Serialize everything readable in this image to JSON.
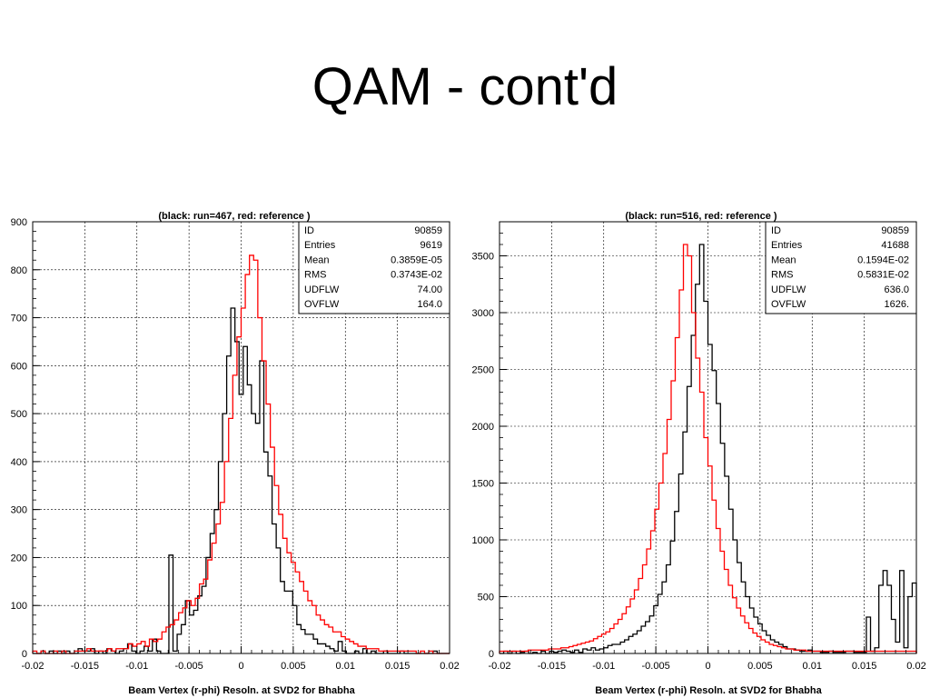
{
  "slide": {
    "title": "QAM - cont'd"
  },
  "chart_data": [
    {
      "type": "histogram",
      "title": "(black: run=467, red: reference )",
      "xlabel": "Beam Vertex (r-phi) Resoln. at SVD2 for Bhabha",
      "ylabel": "",
      "xlim": [
        -0.02,
        0.02
      ],
      "ylim": [
        0,
        900
      ],
      "x_ticks": [
        "-0.02",
        "-0.015",
        "-0.01",
        "-0.005",
        "0",
        "0.005",
        "0.01",
        "0.015",
        "0.02"
      ],
      "y_ticks": [
        0,
        100,
        200,
        300,
        400,
        500,
        600,
        700,
        800,
        900
      ],
      "grid": true,
      "bin_width": 0.0004,
      "series": [
        {
          "name": "black: run=467",
          "color": "#000000",
          "values": [
            0,
            0,
            5,
            0,
            5,
            0,
            5,
            0,
            5,
            0,
            0,
            10,
            5,
            5,
            10,
            0,
            5,
            0,
            10,
            5,
            0,
            5,
            10,
            20,
            5,
            0,
            5,
            15,
            5,
            30,
            5,
            0,
            0,
            205,
            5,
            40,
            60,
            110,
            80,
            90,
            120,
            140,
            200,
            250,
            300,
            400,
            500,
            620,
            720,
            650,
            540,
            640,
            560,
            500,
            480,
            610,
            420,
            370,
            270,
            220,
            150,
            130,
            130,
            100,
            60,
            50,
            40,
            40,
            30,
            20,
            20,
            15,
            10,
            5,
            25,
            5,
            0,
            0,
            5,
            0,
            10,
            0,
            5,
            0,
            0,
            5,
            0,
            0,
            0,
            5,
            0,
            0,
            0,
            0,
            0,
            0,
            0,
            5,
            0,
            0,
            0
          ]
        },
        {
          "name": "red: reference",
          "color": "#ff0000",
          "values": [
            5,
            0,
            5,
            0,
            0,
            5,
            0,
            5,
            0,
            0,
            5,
            5,
            5,
            10,
            5,
            5,
            5,
            5,
            10,
            5,
            10,
            10,
            10,
            20,
            15,
            20,
            25,
            15,
            30,
            25,
            30,
            45,
            55,
            60,
            70,
            85,
            95,
            110,
            100,
            115,
            145,
            155,
            195,
            230,
            270,
            315,
            400,
            490,
            580,
            660,
            720,
            790,
            830,
            820,
            700,
            610,
            520,
            430,
            350,
            290,
            240,
            210,
            190,
            170,
            150,
            130,
            110,
            100,
            80,
            70,
            60,
            55,
            45,
            45,
            35,
            30,
            25,
            20,
            15,
            15,
            10,
            10,
            10,
            5,
            5,
            5,
            5,
            5,
            5,
            5,
            5,
            5,
            0,
            5,
            0,
            5,
            0,
            0,
            0,
            0
          ]
        }
      ],
      "stats": [
        {
          "label": "ID",
          "value": "90859"
        },
        {
          "label": "Entries",
          "value": "9619"
        },
        {
          "label": "Mean",
          "value": "0.3859E-05"
        },
        {
          "label": "RMS",
          "value": "0.3743E-02"
        },
        {
          "label": "UDFLW",
          "value": "74.00"
        },
        {
          "label": "OVFLW",
          "value": "164.0"
        }
      ]
    },
    {
      "type": "histogram",
      "title": "(black: run=516, red: reference )",
      "xlabel": "Beam Vertex (r-phi) Resoln. at SVD2 for Bhabha",
      "ylabel": "",
      "xlim": [
        -0.02,
        0.02
      ],
      "ylim": [
        0,
        3800
      ],
      "x_ticks": [
        "-0.02",
        "-0.015",
        "-0.01",
        "-0.005",
        "0",
        "0.005",
        "0.01",
        "0.015",
        "0.02"
      ],
      "y_ticks": [
        0,
        500,
        1000,
        1500,
        2000,
        2500,
        3000,
        3500
      ],
      "grid": true,
      "bin_width": 0.0004,
      "series": [
        {
          "name": "black: run=516",
          "color": "#000000",
          "values": [
            0,
            20,
            0,
            20,
            0,
            10,
            20,
            0,
            10,
            0,
            20,
            0,
            20,
            10,
            20,
            30,
            20,
            10,
            30,
            10,
            40,
            30,
            50,
            30,
            40,
            50,
            70,
            80,
            80,
            100,
            120,
            150,
            170,
            200,
            240,
            280,
            330,
            420,
            520,
            630,
            780,
            990,
            1250,
            1580,
            1950,
            2350,
            2800,
            3250,
            3600,
            3100,
            2720,
            2490,
            2200,
            1850,
            1560,
            1270,
            1000,
            800,
            630,
            500,
            400,
            320,
            260,
            200,
            160,
            120,
            100,
            80,
            60,
            40,
            40,
            30,
            20,
            20,
            30,
            20,
            20,
            10,
            10,
            20,
            10,
            10,
            10,
            20,
            20,
            10,
            10,
            10,
            320,
            20,
            50,
            600,
            730,
            600,
            300,
            100,
            730,
            50,
            500,
            620
          ]
        },
        {
          "name": "red: reference",
          "color": "#ff0000",
          "values": [
            20,
            20,
            20,
            20,
            20,
            20,
            20,
            30,
            30,
            30,
            30,
            30,
            40,
            40,
            40,
            50,
            50,
            60,
            70,
            80,
            90,
            100,
            110,
            130,
            150,
            170,
            190,
            220,
            260,
            300,
            350,
            410,
            480,
            560,
            660,
            780,
            920,
            1080,
            1270,
            1500,
            1760,
            2060,
            2400,
            2780,
            3200,
            3600,
            3500,
            3000,
            2600,
            2300,
            1900,
            1650,
            1350,
            1100,
            900,
            740,
            600,
            490,
            400,
            330,
            270,
            220,
            180,
            150,
            120,
            100,
            80,
            70,
            60,
            50,
            40,
            40,
            30,
            30,
            30,
            20,
            20,
            20,
            20,
            20,
            20,
            20,
            20,
            20,
            20,
            20,
            20,
            20,
            20,
            20,
            20,
            20,
            20,
            20,
            20,
            20,
            20,
            20,
            20,
            20,
            20,
            20
          ]
        }
      ],
      "stats": [
        {
          "label": "ID",
          "value": "90859"
        },
        {
          "label": "Entries",
          "value": "41688"
        },
        {
          "label": "Mean",
          "value": "0.1594E-02"
        },
        {
          "label": "RMS",
          "value": "0.5831E-02"
        },
        {
          "label": "UDFLW",
          "value": "636.0"
        },
        {
          "label": "OVFLW",
          "value": "1626."
        }
      ]
    }
  ]
}
